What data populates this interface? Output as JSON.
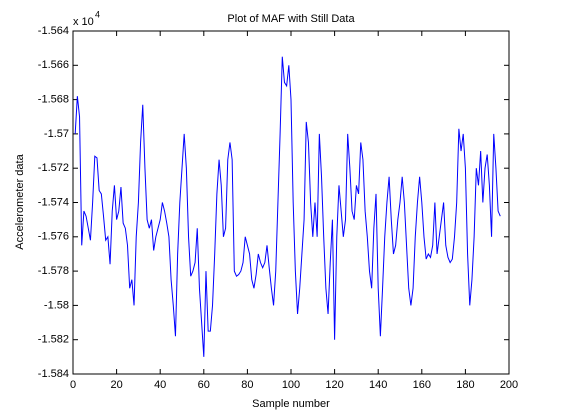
{
  "chart_data": {
    "type": "line",
    "title": "Plot of MAF with Still Data",
    "xlabel": "Sample number",
    "ylabel": "Accelerometer data",
    "y_multiplier": {
      "base": "x 10",
      "exponent": "4"
    },
    "xlim": [
      0,
      200
    ],
    "xticks": [
      0,
      20,
      40,
      60,
      80,
      100,
      120,
      140,
      160,
      180,
      200
    ],
    "ylim": [
      -1.584,
      -1.564
    ],
    "yticks": [
      -1.584,
      -1.582,
      -1.58,
      -1.578,
      -1.576,
      -1.574,
      -1.572,
      -1.57,
      -1.568,
      -1.566,
      -1.564
    ],
    "series": [
      {
        "color": "#0000ff",
        "x": [
          1,
          2,
          3,
          4,
          5,
          6,
          7,
          8,
          9,
          10,
          11,
          12,
          13,
          14,
          15,
          16,
          17,
          18,
          19,
          20,
          21,
          22,
          23,
          24,
          25,
          26,
          27,
          28,
          29,
          30,
          31,
          32,
          33,
          34,
          35,
          36,
          37,
          38,
          39,
          40,
          41,
          42,
          43,
          44,
          45,
          46,
          47,
          48,
          49,
          50,
          51,
          52,
          53,
          54,
          55,
          56,
          57,
          58,
          59,
          60,
          61,
          62,
          63,
          64,
          65,
          66,
          67,
          68,
          69,
          70,
          71,
          72,
          73,
          74,
          75,
          76,
          77,
          78,
          79,
          80,
          81,
          82,
          83,
          84,
          85,
          86,
          87,
          88,
          89,
          90,
          91,
          92,
          93,
          94,
          95,
          96,
          97,
          98,
          99,
          100,
          101,
          102,
          103,
          104,
          105,
          106,
          107,
          108,
          109,
          110,
          111,
          112,
          113,
          114,
          115,
          116,
          117,
          118,
          119,
          120,
          121,
          122,
          123,
          124,
          125,
          126,
          127,
          128,
          129,
          130,
          131,
          132,
          133,
          134,
          135,
          136,
          137,
          138,
          139,
          140,
          141,
          142,
          143,
          144,
          145,
          146,
          147,
          148,
          149,
          150,
          151,
          152,
          153,
          154,
          155,
          156,
          157,
          158,
          159,
          160,
          161,
          162,
          163,
          164,
          165,
          166,
          167,
          168,
          169,
          170,
          171,
          172,
          173,
          174,
          175,
          176,
          177,
          178,
          179,
          180,
          181,
          182,
          183,
          184,
          185,
          186,
          187,
          188,
          189,
          190,
          191,
          192,
          193,
          194,
          195,
          196
        ],
        "values": [
          -1.57,
          -1.5678,
          -1.569,
          -1.5765,
          -1.5745,
          -1.5748,
          -1.5755,
          -1.5762,
          -1.574,
          -1.5713,
          -1.5714,
          -1.5733,
          -1.5735,
          -1.5748,
          -1.5762,
          -1.576,
          -1.5776,
          -1.5745,
          -1.573,
          -1.575,
          -1.5745,
          -1.5731,
          -1.5752,
          -1.5755,
          -1.5765,
          -1.579,
          -1.5785,
          -1.58,
          -1.576,
          -1.574,
          -1.5705,
          -1.5683,
          -1.572,
          -1.575,
          -1.5755,
          -1.575,
          -1.5768,
          -1.576,
          -1.5755,
          -1.575,
          -1.574,
          -1.5745,
          -1.5752,
          -1.576,
          -1.5785,
          -1.58,
          -1.5818,
          -1.577,
          -1.574,
          -1.572,
          -1.57,
          -1.572,
          -1.576,
          -1.5783,
          -1.578,
          -1.5775,
          -1.5755,
          -1.579,
          -1.581,
          -1.583,
          -1.578,
          -1.5815,
          -1.5815,
          -1.58,
          -1.577,
          -1.5735,
          -1.5715,
          -1.573,
          -1.576,
          -1.5755,
          -1.5715,
          -1.5705,
          -1.5715,
          -1.578,
          -1.5783,
          -1.5782,
          -1.578,
          -1.5775,
          -1.576,
          -1.5765,
          -1.577,
          -1.5785,
          -1.579,
          -1.5782,
          -1.577,
          -1.5775,
          -1.5778,
          -1.5775,
          -1.5765,
          -1.5778,
          -1.579,
          -1.58,
          -1.578,
          -1.574,
          -1.57,
          -1.5655,
          -1.567,
          -1.5672,
          -1.566,
          -1.568,
          -1.574,
          -1.578,
          -1.5805,
          -1.579,
          -1.577,
          -1.575,
          -1.5693,
          -1.5705,
          -1.574,
          -1.576,
          -1.574,
          -1.576,
          -1.57,
          -1.5725,
          -1.576,
          -1.579,
          -1.5805,
          -1.5775,
          -1.575,
          -1.582,
          -1.576,
          -1.573,
          -1.5745,
          -1.576,
          -1.575,
          -1.57,
          -1.572,
          -1.5745,
          -1.575,
          -1.573,
          -1.5735,
          -1.5705,
          -1.5715,
          -1.5745,
          -1.576,
          -1.578,
          -1.579,
          -1.5755,
          -1.5735,
          -1.579,
          -1.5818,
          -1.579,
          -1.576,
          -1.574,
          -1.5725,
          -1.575,
          -1.577,
          -1.5765,
          -1.575,
          -1.574,
          -1.5725,
          -1.574,
          -1.5765,
          -1.579,
          -1.58,
          -1.579,
          -1.576,
          -1.574,
          -1.5725,
          -1.574,
          -1.576,
          -1.5773,
          -1.577,
          -1.5772,
          -1.5765,
          -1.574,
          -1.577,
          -1.576,
          -1.575,
          -1.574,
          -1.5765,
          -1.5772,
          -1.5775,
          -1.5773,
          -1.576,
          -1.574,
          -1.5697,
          -1.571,
          -1.57,
          -1.572,
          -1.577,
          -1.58,
          -1.5785,
          -1.576,
          -1.572,
          -1.573,
          -1.571,
          -1.574,
          -1.572,
          -1.5712,
          -1.573,
          -1.576,
          -1.57,
          -1.572,
          -1.5745,
          -1.5748
        ]
      }
    ]
  }
}
